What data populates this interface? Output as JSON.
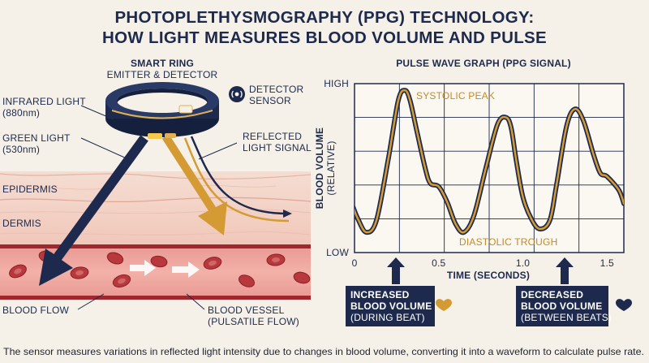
{
  "title": {
    "line1": "PHOTOPLETHYSMOGRAPHY (PPG) TECHNOLOGY:",
    "line2": "HOW LIGHT MEASURES BLOOD VOLUME AND PULSE"
  },
  "ring": {
    "title": "SMART RING",
    "subtitle": "EMITTER & DETECTOR"
  },
  "labels": {
    "infrared_1": "INFRARED LIGHT",
    "infrared_2": "(880nm)",
    "green_1": "GREEN LIGHT",
    "green_2": "(530nm)",
    "detector_1": "DETECTOR",
    "detector_2": "SENSOR",
    "reflected_1": "REFLECTED",
    "reflected_2": "LIGHT SIGNAL",
    "epidermis": "EPIDERMIS",
    "dermis": "DERMIS",
    "blood_flow": "BLOOD FLOW",
    "vessel_1": "BLOOD VESSEL",
    "vessel_2": "(PULSATILE FLOW)"
  },
  "chart_data": {
    "type": "line",
    "title": "PULSE WAVE GRAPH (PPG SIGNAL)",
    "xlabel": "TIME (SECONDS)",
    "ylabel_1": "BLOOD VOLUME",
    "ylabel_2": "(RELATIVE)",
    "xlim": [
      0,
      1.6
    ],
    "ylim": [
      0,
      1
    ],
    "x_ticks": [
      {
        "value": 0,
        "label": "0"
      },
      {
        "value": 0.5,
        "label": "0.5"
      },
      {
        "value": 1.0,
        "label": "1.0"
      },
      {
        "value": 1.5,
        "label": "1.5"
      }
    ],
    "y_tick_labels": {
      "high": "HIGH",
      "low": "LOW"
    },
    "grid": true,
    "series": [
      {
        "x": [
          -0.02,
          0.02,
          0.07,
          0.13,
          0.2,
          0.26,
          0.3,
          0.33,
          0.37,
          0.42,
          0.45,
          0.5,
          0.55,
          0.6,
          0.65,
          0.71,
          0.78,
          0.85,
          0.9,
          0.93,
          0.96,
          1.0,
          1.05,
          1.1,
          1.16,
          1.2,
          1.26,
          1.31,
          1.36,
          1.42,
          1.46,
          1.5,
          1.57,
          1.6
        ],
        "y": [
          0.3,
          0.2,
          0.12,
          0.19,
          0.55,
          0.9,
          0.96,
          0.9,
          0.72,
          0.5,
          0.41,
          0.39,
          0.3,
          0.17,
          0.12,
          0.22,
          0.5,
          0.76,
          0.8,
          0.74,
          0.55,
          0.33,
          0.2,
          0.14,
          0.19,
          0.4,
          0.75,
          0.85,
          0.78,
          0.58,
          0.47,
          0.45,
          0.37,
          0.29
        ]
      }
    ],
    "annotations": {
      "systolic": "SYSTOLIC PEAK",
      "diastolic": "DIASTOLIC TROUGH"
    }
  },
  "callouts": {
    "increase_1": "INCREASED",
    "increase_2": "BLOOD VOLUME",
    "increase_3": "(DURING BEAT)",
    "decrease_1": "DECREASED",
    "decrease_2": "BLOOD VOLUME",
    "decrease_3": "(BETWEEN BEATS)"
  },
  "caption": "The sensor measures variations in reflected light intensity due to changes in blood volume, converting it into a waveform to calculate pulse rate.",
  "colors": {
    "navy": "#1d2a4d",
    "gold": "#d49a34",
    "blood_red": "#b23a3f",
    "skin": "#f2cfc3",
    "background": "#f6f1e8"
  }
}
